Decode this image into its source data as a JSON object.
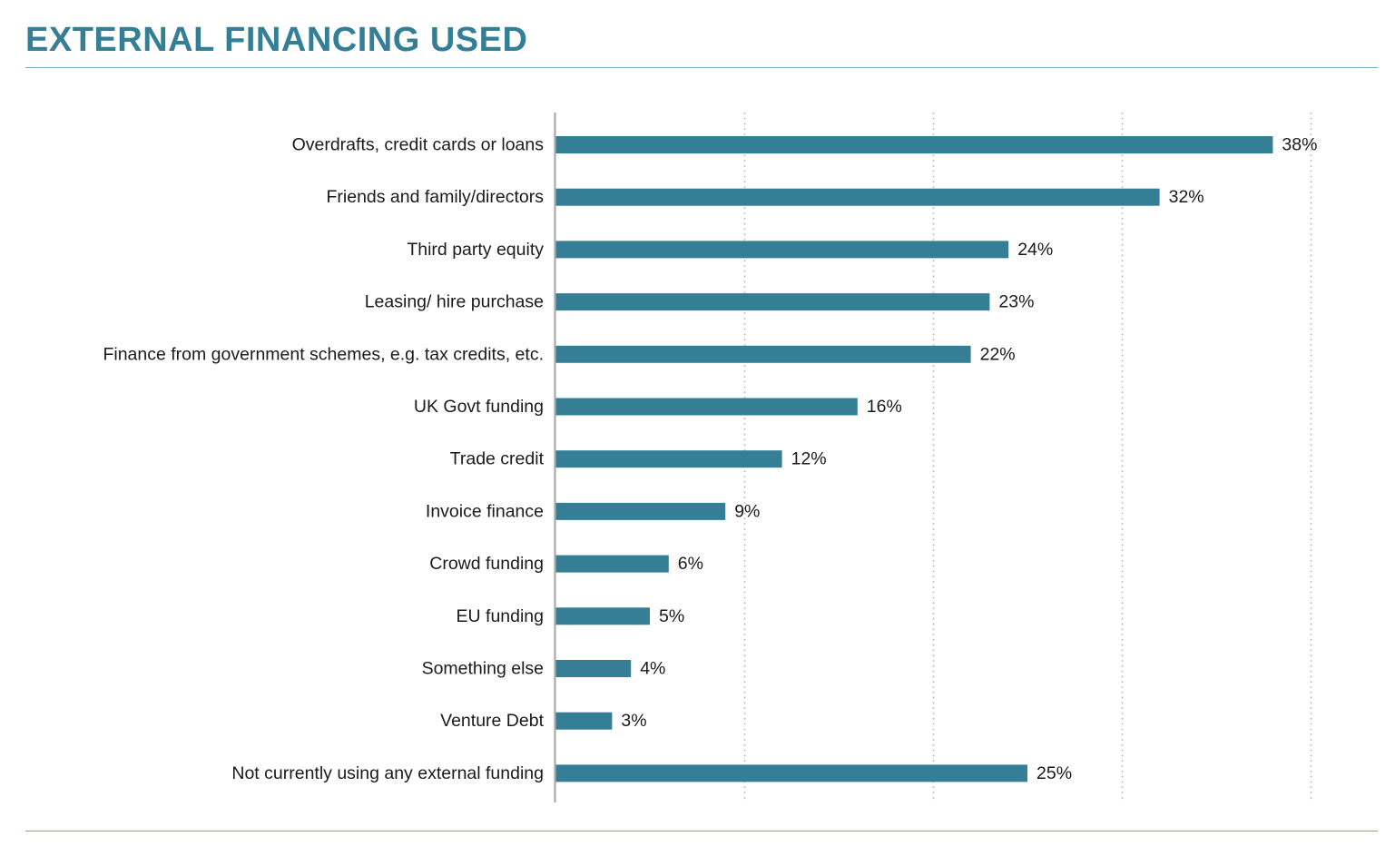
{
  "chart_data": {
    "type": "bar",
    "orientation": "horizontal",
    "title": "EXTERNAL FINANCING USED",
    "xlabel": "",
    "ylabel": "",
    "categories": [
      "Overdrafts, credit cards or loans",
      "Friends and family/directors",
      "Third party equity",
      "Leasing/ hire purchase",
      "Finance from government schemes, e.g. tax credits, etc.",
      "UK Govt funding",
      "Trade credit",
      "Invoice finance",
      "Crowd funding",
      "EU funding",
      "Something else",
      "Venture Debt",
      "Not currently using any external funding"
    ],
    "values": [
      38,
      32,
      24,
      23,
      22,
      16,
      12,
      9,
      6,
      5,
      4,
      3,
      25
    ],
    "data_labels": [
      "38%",
      "32%",
      "24%",
      "23%",
      "22%",
      "16%",
      "12%",
      "9%",
      "6%",
      "5%",
      "4%",
      "3%",
      "25%"
    ],
    "xlim": [
      0,
      40
    ],
    "gridlines_at": [
      10,
      20,
      30,
      40
    ],
    "grid": true,
    "grid_style": "dotted vertical",
    "legend": "none",
    "bar_color": "#357f96",
    "text_color": "#1a1a1a",
    "grid_color": "#b5b5b5",
    "axis_color": "#a9a9a9"
  }
}
